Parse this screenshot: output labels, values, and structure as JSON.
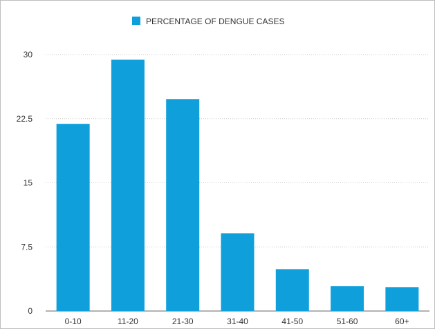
{
  "chart_data": {
    "type": "bar",
    "categories": [
      "0-10",
      "11-20",
      "21-30",
      "31-40",
      "41-50",
      "51-60",
      "60+"
    ],
    "series": [
      {
        "name": "PERCENTAGE OF DENGUE CASES",
        "color": "#0fa0dc",
        "values": [
          21.9,
          29.4,
          24.8,
          9.1,
          4.9,
          2.9,
          2.8
        ]
      }
    ],
    "yticks": [
      "0",
      "7.5",
      "15",
      "22.5",
      "30"
    ],
    "ylim": [
      0,
      30
    ],
    "grid": true,
    "legend_position": "top-center"
  }
}
